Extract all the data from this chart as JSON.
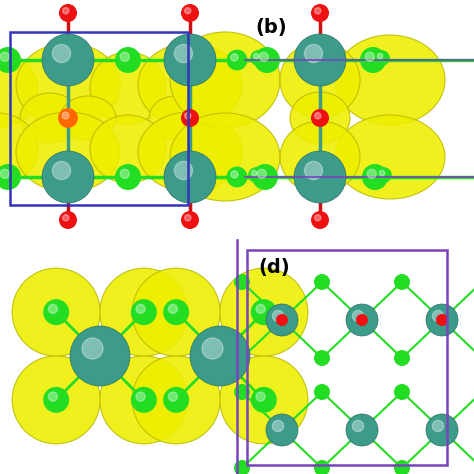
{
  "colors": {
    "nb_atom": "#3D9B8A",
    "cl_atom": "#22DD22",
    "o_atom": "#EE1111",
    "yellow": "#EEEE00",
    "yellow_edge": "#BBBB00",
    "bond_green": "#22DD22",
    "bond_red": "#CC1111",
    "bond_teal": "#3D9B8A",
    "box_blue": "#3333BB",
    "box_purple": "#7744BB",
    "purple_line": "#7744BB",
    "background": "#FFFFFF"
  },
  "figure_width": 4.74,
  "figure_height": 4.74,
  "dpi": 100
}
